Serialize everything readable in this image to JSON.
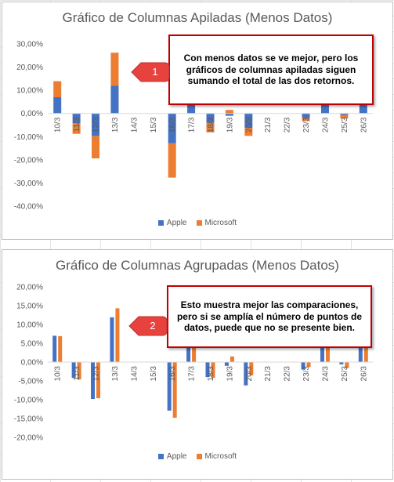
{
  "chart_data": [
    {
      "type": "bar",
      "stacked": true,
      "title": "Gráfico de Columnas Apiladas (Menos Datos)",
      "categories": [
        "10/3",
        "11/3",
        "12/3",
        "13/3",
        "14/3",
        "15/3",
        "16/3",
        "17/3",
        "18/3",
        "19/3",
        "20/3",
        "21/3",
        "22/3",
        "23/3",
        "24/3",
        "25/3",
        "26/3"
      ],
      "series": [
        {
          "name": "Apple",
          "color": "#4472c4",
          "values": [
            7.0,
            -4.2,
            -9.8,
            11.9,
            0,
            0,
            -12.9,
            6.2,
            -4.0,
            -1.0,
            -6.2,
            0,
            0,
            -2.0,
            4.5,
            -0.6,
            4.0
          ]
        },
        {
          "name": "Microsoft",
          "color": "#ed7d31",
          "values": [
            6.9,
            -4.6,
            -9.6,
            14.3,
            0,
            0,
            -14.8,
            5.9,
            -4.2,
            1.5,
            -3.5,
            0,
            0,
            -1.3,
            4.0,
            -1.6,
            4.4
          ]
        }
      ],
      "ylim": [
        -40,
        30
      ],
      "yticks": [
        "30,00%",
        "20,00%",
        "10,00%",
        "0,00%",
        "-10,00%",
        "-20,00%",
        "-30,00%",
        "-40,00%"
      ],
      "legend_position": "bottom",
      "grid": false,
      "callout": {
        "number": "1",
        "text": "Con menos datos se ve mejor, pero los gráficos de columnas apiladas siguen sumando el total de las dos retornos."
      }
    },
    {
      "type": "bar",
      "stacked": false,
      "title": "Gráfico de Columnas Agrupadas (Menos Datos)",
      "categories": [
        "10/3",
        "11/3",
        "12/3",
        "13/3",
        "14/3",
        "15/3",
        "16/3",
        "17/3",
        "18/3",
        "19/3",
        "20/3",
        "21/3",
        "22/3",
        "23/3",
        "24/3",
        "25/3",
        "26/3"
      ],
      "series": [
        {
          "name": "Apple",
          "color": "#4472c4",
          "values": [
            7.0,
            -4.2,
            -9.8,
            11.9,
            0,
            0,
            -12.9,
            6.2,
            -4.0,
            -1.0,
            -6.2,
            0,
            0,
            -2.0,
            4.5,
            -0.6,
            4.0
          ]
        },
        {
          "name": "Microsoft",
          "color": "#ed7d31",
          "values": [
            6.9,
            -4.6,
            -9.6,
            14.3,
            0,
            0,
            -14.8,
            5.9,
            -4.2,
            1.5,
            -3.5,
            0,
            0,
            -1.3,
            4.0,
            -1.6,
            4.4
          ]
        }
      ],
      "ylim": [
        -20,
        20
      ],
      "yticks": [
        "20,00%",
        "15,00%",
        "10,00%",
        "5,00%",
        "0,00%",
        "-5,00%",
        "-10,00%",
        "-15,00%",
        "-20,00%"
      ],
      "legend_position": "bottom",
      "grid": false,
      "callout": {
        "number": "2",
        "text": "Esto muestra mejor las comparaciones, pero si se amplía el número de puntos de datos, puede que no se presente bien."
      }
    }
  ],
  "colors": {
    "callout_border": "#c00000",
    "badge_fill": "#e8423f",
    "axis": "#d9d9d9",
    "text": "#595959"
  }
}
